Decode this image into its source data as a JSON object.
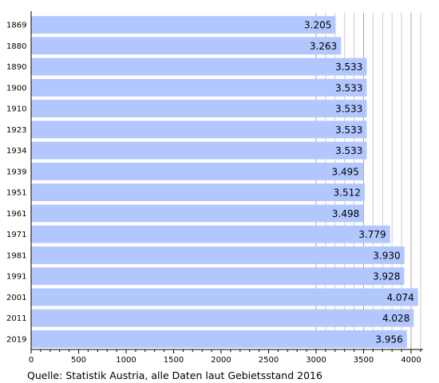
{
  "chart_data": {
    "type": "bar",
    "orientation": "horizontal",
    "categories": [
      "1869",
      "1880",
      "1890",
      "1900",
      "1910",
      "1923",
      "1934",
      "1939",
      "1951",
      "1961",
      "1971",
      "1981",
      "1991",
      "2001",
      "2011",
      "2019"
    ],
    "values": [
      3205,
      3263,
      3533,
      3533,
      3533,
      3533,
      3533,
      3495,
      3512,
      3498,
      3779,
      3930,
      3928,
      4074,
      4028,
      3956
    ],
    "value_labels": [
      "3.205",
      "3.263",
      "3.533",
      "3.533",
      "3.533",
      "3.533",
      "3.533",
      "3.495",
      "3.512",
      "3.498",
      "3.779",
      "3.930",
      "3.928",
      "4.074",
      "4.028",
      "3.956"
    ],
    "xlim": [
      0,
      4000
    ],
    "xticks": [
      0,
      500,
      1000,
      1500,
      2000,
      2500,
      3000,
      3500,
      4000
    ],
    "minor_tick_step": 100,
    "grid": "vertical",
    "bar_color": "#b3c7ff",
    "grid_color": "#cccccc",
    "major_grid_color": "#a6a6a6"
  },
  "source_note": "Quelle: Statistik Austria, alle Daten laut Gebietsstand 2016"
}
